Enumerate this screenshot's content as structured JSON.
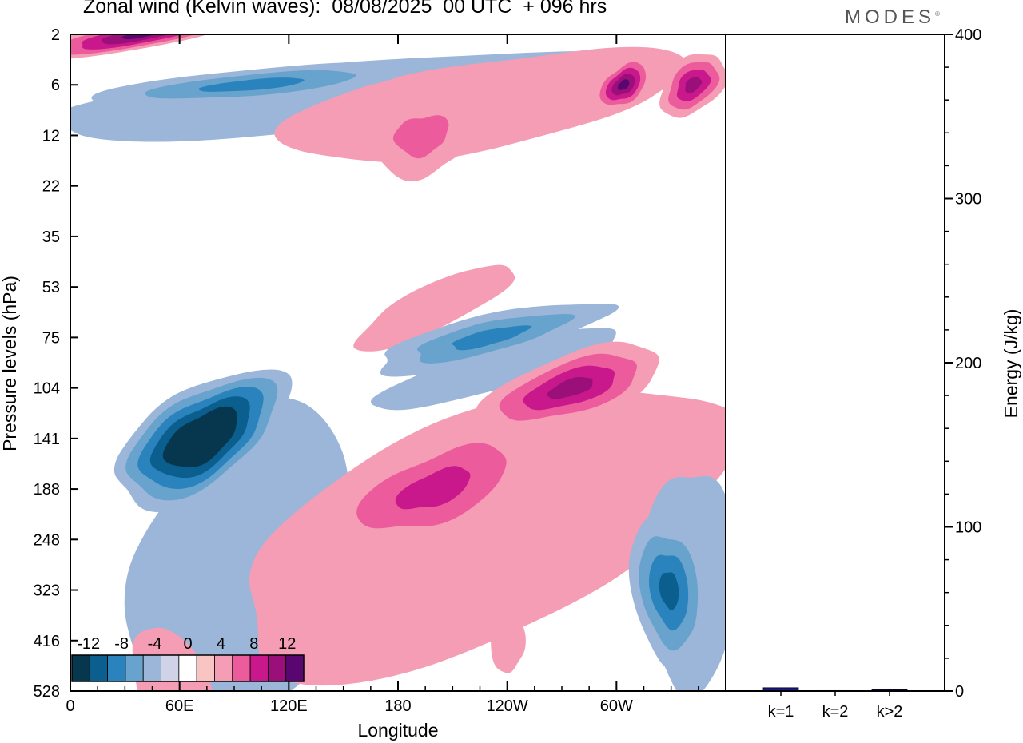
{
  "title": "Zonal wind (Kelvin waves):  08/08/2025  00 UTC  + 096 hrs",
  "logo": "MODES",
  "chart_data": [
    {
      "type": "heatmap",
      "xlabel": "Longitude",
      "ylabel": "Pressure levels (hPa)",
      "x_ticks": [
        "0",
        "60E",
        "120E",
        "180",
        "120W",
        "60W"
      ],
      "x_tick_values": [
        0,
        60,
        120,
        180,
        240,
        300
      ],
      "xlim": [
        0,
        360
      ],
      "y_ticks": [
        "2",
        "6",
        "12",
        "22",
        "35",
        "53",
        "75",
        "104",
        "141",
        "188",
        "248",
        "323",
        "416",
        "528"
      ],
      "colorbar": {
        "labels": [
          "-12",
          "-8",
          "-4",
          "0",
          "4",
          "8",
          "12"
        ],
        "label_values": [
          -12,
          -8,
          -4,
          0,
          4,
          8,
          12
        ],
        "levels": [
          -14,
          -12,
          -10,
          -8,
          -6,
          -4,
          -2,
          2,
          4,
          6,
          8,
          10,
          12,
          14
        ],
        "colors": [
          "#06374f",
          "#0b5f8f",
          "#2a83bd",
          "#67a3cc",
          "#9bb6d8",
          "#d0d3e8",
          "#ffffff",
          "#f9c5c2",
          "#f59db4",
          "#ec5c9c",
          "#c8188c",
          "#9a0f79",
          "#5a0670"
        ]
      },
      "features": [
        {
          "sign": "negative",
          "lon": 72,
          "level": "141",
          "peak": -13
        },
        {
          "sign": "negative",
          "lon": 329,
          "level": "323",
          "peak": -7
        },
        {
          "sign": "negative",
          "lon": 230,
          "level": "75",
          "peak": -5
        },
        {
          "sign": "positive",
          "lon": 200,
          "level": "188",
          "peak": 6
        },
        {
          "sign": "positive",
          "lon": 275,
          "level": "104",
          "peak": 8
        },
        {
          "sign": "positive",
          "lon": 193,
          "level": "12",
          "peak": 4
        },
        {
          "sign": "positive",
          "lon": 40,
          "level": "2",
          "peak": 9
        },
        {
          "sign": "positive",
          "lon": 304,
          "level": "6",
          "peak": 9
        },
        {
          "sign": "positive",
          "lon": 342,
          "level": "6",
          "peak": 8
        },
        {
          "sign": "negative",
          "lon": 100,
          "level": "6",
          "peak": -5
        }
      ]
    },
    {
      "type": "bar",
      "categories": [
        "k=1",
        "k=2",
        "k>2"
      ],
      "values": [
        2,
        0.3,
        0.8
      ],
      "ylabel": "Energy (J/kg)",
      "ylim": [
        0,
        400
      ],
      "y_ticks": [
        0,
        100,
        200,
        300,
        400
      ],
      "bar_color": "#1a1a8c"
    }
  ]
}
